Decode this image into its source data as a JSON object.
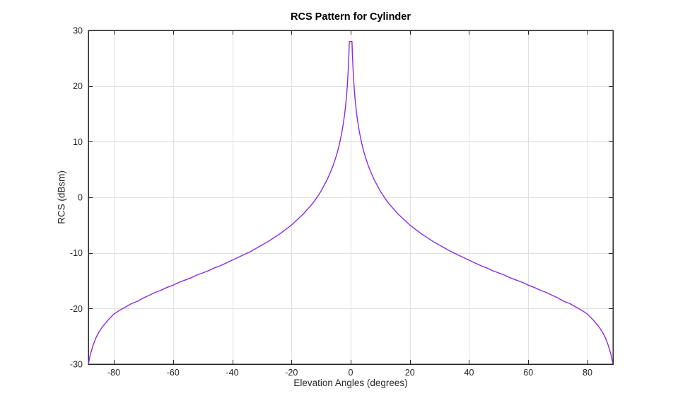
{
  "chart_data": {
    "type": "line",
    "title": "RCS Pattern for Cylinder",
    "xlabel": "Elevation Angles (degrees)",
    "ylabel": "RCS (dBsm)",
    "xlim": [
      -88.6,
      88.6
    ],
    "ylim": [
      -30,
      30
    ],
    "xticks": [
      -80,
      -60,
      -40,
      -20,
      0,
      20,
      40,
      60,
      80
    ],
    "yticks": [
      -30,
      -20,
      -10,
      0,
      10,
      20,
      30
    ],
    "grid": true,
    "line_color": "#8a2be2",
    "series": [
      {
        "x": [
          -88.6,
          -88,
          -87,
          -86,
          -85,
          -84,
          -82,
          -80,
          -78,
          -76,
          -74,
          -72,
          -70,
          -68,
          -66,
          -64,
          -62,
          -60,
          -58,
          -56,
          -54,
          -52,
          -50,
          -48,
          -46,
          -44,
          -42,
          -40,
          -38,
          -36,
          -34,
          -32,
          -30,
          -28,
          -26,
          -24,
          -22,
          -20,
          -19,
          -18,
          -17,
          -16,
          -15,
          -14,
          -13,
          -12,
          -11,
          -10,
          -9,
          -8,
          -7,
          -6,
          -5,
          -4.5,
          -4,
          -3.5,
          -3,
          -2.5,
          -2,
          -1.75,
          -1.5,
          -1.25,
          -1,
          -0.8,
          -0.6,
          -0.45,
          -0.3,
          -0.15,
          0,
          0.15,
          0.3,
          0.45,
          0.6,
          0.8,
          1,
          1.25,
          1.5,
          1.75,
          2,
          2.5,
          3,
          3.5,
          4,
          4.5,
          5,
          6,
          7,
          8,
          9,
          10,
          11,
          12,
          13,
          14,
          15,
          16,
          17,
          18,
          19,
          20,
          22,
          24,
          26,
          28,
          30,
          32,
          34,
          36,
          38,
          40,
          42,
          44,
          46,
          48,
          50,
          52,
          54,
          56,
          58,
          60,
          62,
          64,
          66,
          68,
          70,
          72,
          74,
          76,
          78,
          80,
          82,
          84,
          85,
          86,
          87,
          88,
          88.6
        ],
        "y": [
          -30.1,
          -28.4,
          -26.6,
          -25.2,
          -24.2,
          -23.4,
          -22.1,
          -21,
          -20.3,
          -19.7,
          -19.1,
          -18.7,
          -18.1,
          -17.6,
          -17.1,
          -16.7,
          -16.2,
          -15.8,
          -15.3,
          -14.9,
          -14.5,
          -14,
          -13.6,
          -13.2,
          -12.7,
          -12.3,
          -11.8,
          -11.3,
          -10.8,
          -10.3,
          -9.8,
          -9.2,
          -8.6,
          -8,
          -7.3,
          -6.6,
          -5.8,
          -5,
          -4.5,
          -4,
          -3.5,
          -3,
          -2.4,
          -1.8,
          -1.2,
          -0.5,
          0.3,
          1.1,
          2.1,
          3.1,
          4.3,
          5.6,
          7.2,
          8.1,
          9.1,
          10.3,
          11.6,
          13.2,
          15.1,
          16.3,
          17.6,
          19.2,
          21.2,
          23.1,
          25.6,
          28,
          28,
          28,
          28,
          28,
          28,
          28,
          25.6,
          23.1,
          21.2,
          19.2,
          17.6,
          16.3,
          15.1,
          13.2,
          11.6,
          10.3,
          9.1,
          8.1,
          7.2,
          5.6,
          4.3,
          3.1,
          2.1,
          1.1,
          0.3,
          -0.5,
          -1.2,
          -1.8,
          -2.4,
          -3,
          -3.5,
          -4,
          -4.5,
          -5,
          -5.8,
          -6.6,
          -7.3,
          -8,
          -8.6,
          -9.2,
          -9.8,
          -10.3,
          -10.8,
          -11.3,
          -11.8,
          -12.3,
          -12.7,
          -13.2,
          -13.6,
          -14,
          -14.5,
          -14.9,
          -15.3,
          -15.8,
          -16.2,
          -16.7,
          -17.1,
          -17.6,
          -18.1,
          -18.7,
          -19.1,
          -19.7,
          -20.3,
          -21,
          -22.1,
          -23.4,
          -24.2,
          -25.2,
          -26.6,
          -28.4,
          -30.1
        ]
      }
    ]
  },
  "colors": {
    "background": "#ffffff",
    "line": "#8a2be2",
    "grid": "#e0e0e0",
    "axis": "#262626",
    "tick_label": "#262626",
    "title": "#000000"
  }
}
